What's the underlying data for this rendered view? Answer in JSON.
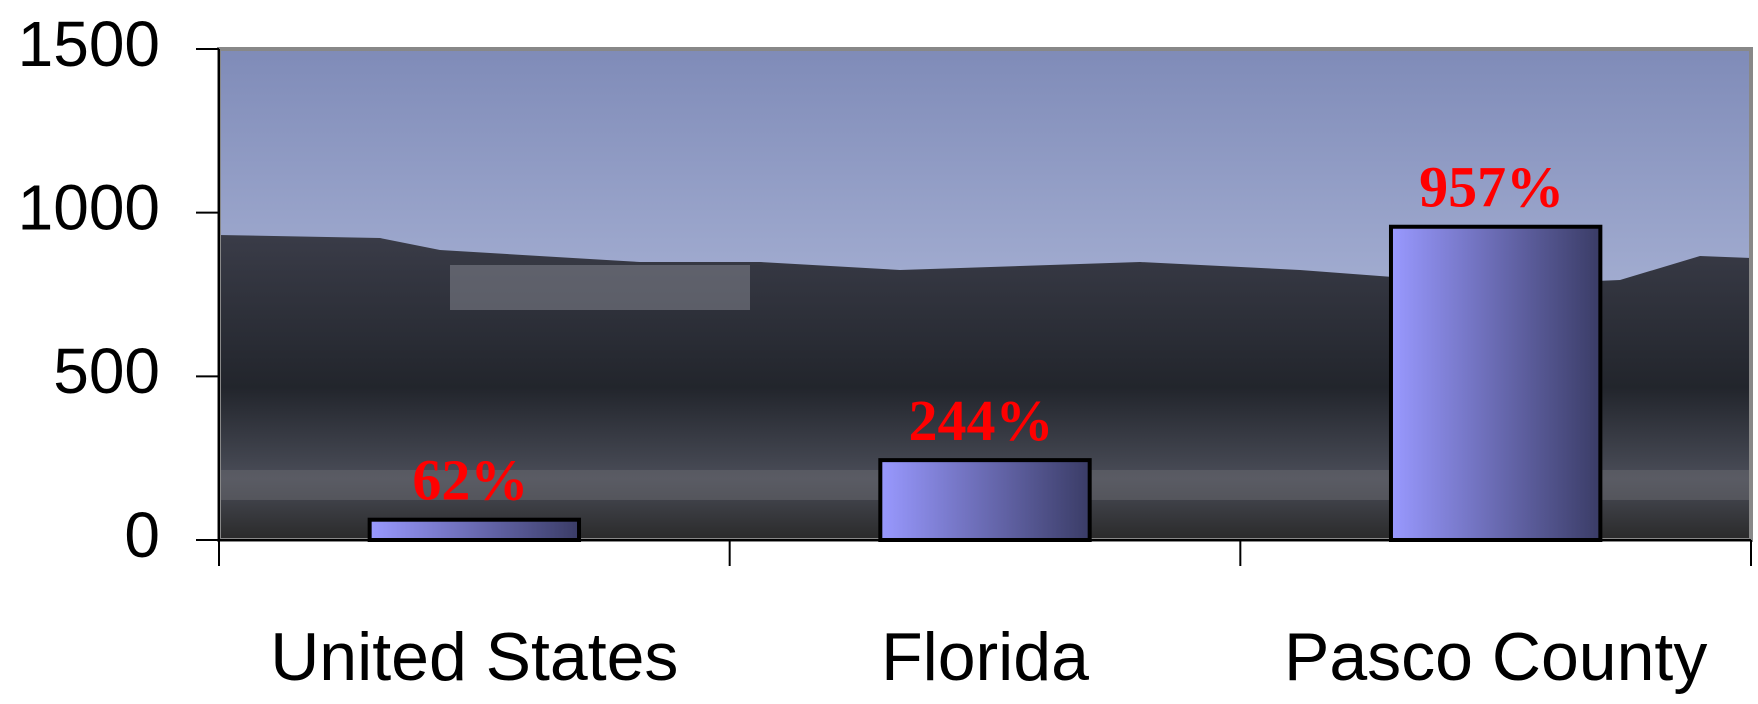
{
  "chart_data": {
    "type": "bar",
    "categories": [
      "United States",
      "Florida",
      "Pasco County"
    ],
    "values": [
      62,
      244,
      957
    ],
    "value_labels": [
      "62%",
      "244%",
      "957%"
    ],
    "color": "#9999ff",
    "ylim": [
      0,
      1500
    ],
    "yticks": [
      0,
      500,
      1000,
      1500
    ]
  }
}
